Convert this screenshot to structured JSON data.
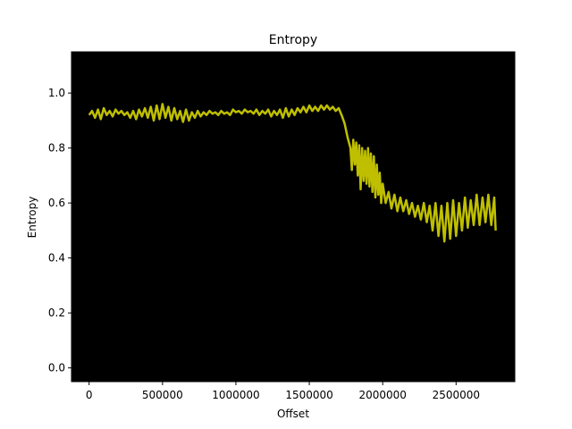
{
  "chart_data": {
    "type": "line",
    "title": "Entropy",
    "xlabel": "Offset",
    "ylabel": "Entropy",
    "xlim": [
      -120000,
      2900000
    ],
    "ylim": [
      -0.05,
      1.15
    ],
    "x_ticks": [
      {
        "value": 0,
        "label": "0"
      },
      {
        "value": 500000,
        "label": "500000"
      },
      {
        "value": 1000000,
        "label": "1000000"
      },
      {
        "value": 1500000,
        "label": "1500000"
      },
      {
        "value": 2000000,
        "label": "2000000"
      },
      {
        "value": 2500000,
        "label": "2500000"
      }
    ],
    "y_ticks": [
      {
        "value": 0.0,
        "label": "0.0"
      },
      {
        "value": 0.2,
        "label": "0.2"
      },
      {
        "value": 0.4,
        "label": "0.4"
      },
      {
        "value": 0.6,
        "label": "0.6"
      },
      {
        "value": 0.8,
        "label": "0.8"
      },
      {
        "value": 1.0,
        "label": "1.0"
      }
    ],
    "grid": false,
    "plot_background": "#000000",
    "series": [
      {
        "color": "#bfbf00",
        "points": [
          [
            0,
            0.92
          ],
          [
            20000,
            0.935
          ],
          [
            40000,
            0.91
          ],
          [
            60000,
            0.94
          ],
          [
            80000,
            0.905
          ],
          [
            100000,
            0.945
          ],
          [
            120000,
            0.92
          ],
          [
            140000,
            0.935
          ],
          [
            160000,
            0.915
          ],
          [
            180000,
            0.94
          ],
          [
            200000,
            0.925
          ],
          [
            220000,
            0.935
          ],
          [
            240000,
            0.92
          ],
          [
            260000,
            0.93
          ],
          [
            280000,
            0.91
          ],
          [
            300000,
            0.935
          ],
          [
            320000,
            0.905
          ],
          [
            340000,
            0.94
          ],
          [
            360000,
            0.915
          ],
          [
            380000,
            0.945
          ],
          [
            400000,
            0.91
          ],
          [
            420000,
            0.95
          ],
          [
            440000,
            0.9
          ],
          [
            460000,
            0.955
          ],
          [
            480000,
            0.905
          ],
          [
            500000,
            0.96
          ],
          [
            520000,
            0.91
          ],
          [
            540000,
            0.95
          ],
          [
            560000,
            0.9
          ],
          [
            580000,
            0.945
          ],
          [
            600000,
            0.905
          ],
          [
            620000,
            0.935
          ],
          [
            640000,
            0.895
          ],
          [
            660000,
            0.94
          ],
          [
            680000,
            0.9
          ],
          [
            700000,
            0.93
          ],
          [
            720000,
            0.91
          ],
          [
            740000,
            0.935
          ],
          [
            760000,
            0.915
          ],
          [
            780000,
            0.93
          ],
          [
            800000,
            0.92
          ],
          [
            820000,
            0.935
          ],
          [
            840000,
            0.925
          ],
          [
            860000,
            0.93
          ],
          [
            880000,
            0.92
          ],
          [
            900000,
            0.935
          ],
          [
            920000,
            0.925
          ],
          [
            940000,
            0.93
          ],
          [
            960000,
            0.92
          ],
          [
            980000,
            0.94
          ],
          [
            1000000,
            0.93
          ],
          [
            1020000,
            0.935
          ],
          [
            1040000,
            0.925
          ],
          [
            1060000,
            0.94
          ],
          [
            1080000,
            0.93
          ],
          [
            1100000,
            0.935
          ],
          [
            1120000,
            0.925
          ],
          [
            1140000,
            0.94
          ],
          [
            1160000,
            0.92
          ],
          [
            1180000,
            0.935
          ],
          [
            1200000,
            0.925
          ],
          [
            1220000,
            0.94
          ],
          [
            1240000,
            0.915
          ],
          [
            1260000,
            0.935
          ],
          [
            1280000,
            0.92
          ],
          [
            1300000,
            0.94
          ],
          [
            1320000,
            0.91
          ],
          [
            1340000,
            0.945
          ],
          [
            1360000,
            0.915
          ],
          [
            1380000,
            0.94
          ],
          [
            1400000,
            0.92
          ],
          [
            1420000,
            0.945
          ],
          [
            1440000,
            0.93
          ],
          [
            1460000,
            0.95
          ],
          [
            1480000,
            0.93
          ],
          [
            1500000,
            0.955
          ],
          [
            1520000,
            0.935
          ],
          [
            1540000,
            0.95
          ],
          [
            1560000,
            0.935
          ],
          [
            1580000,
            0.955
          ],
          [
            1600000,
            0.94
          ],
          [
            1620000,
            0.955
          ],
          [
            1640000,
            0.94
          ],
          [
            1660000,
            0.95
          ],
          [
            1680000,
            0.935
          ],
          [
            1700000,
            0.945
          ],
          [
            1720000,
            0.92
          ],
          [
            1740000,
            0.89
          ],
          [
            1760000,
            0.84
          ],
          [
            1780000,
            0.8
          ],
          [
            1790000,
            0.72
          ],
          [
            1800000,
            0.83
          ],
          [
            1810000,
            0.74
          ],
          [
            1820000,
            0.82
          ],
          [
            1830000,
            0.7
          ],
          [
            1840000,
            0.81
          ],
          [
            1850000,
            0.65
          ],
          [
            1860000,
            0.8
          ],
          [
            1870000,
            0.68
          ],
          [
            1880000,
            0.79
          ],
          [
            1890000,
            0.67
          ],
          [
            1900000,
            0.8
          ],
          [
            1910000,
            0.66
          ],
          [
            1920000,
            0.78
          ],
          [
            1930000,
            0.64
          ],
          [
            1940000,
            0.77
          ],
          [
            1950000,
            0.62
          ],
          [
            1960000,
            0.74
          ],
          [
            1970000,
            0.63
          ],
          [
            1980000,
            0.71
          ],
          [
            1990000,
            0.6
          ],
          [
            2000000,
            0.67
          ],
          [
            2020000,
            0.6
          ],
          [
            2040000,
            0.64
          ],
          [
            2060000,
            0.58
          ],
          [
            2080000,
            0.63
          ],
          [
            2100000,
            0.57
          ],
          [
            2120000,
            0.62
          ],
          [
            2140000,
            0.57
          ],
          [
            2160000,
            0.61
          ],
          [
            2180000,
            0.56
          ],
          [
            2200000,
            0.6
          ],
          [
            2220000,
            0.55
          ],
          [
            2240000,
            0.59
          ],
          [
            2260000,
            0.54
          ],
          [
            2280000,
            0.6
          ],
          [
            2300000,
            0.53
          ],
          [
            2320000,
            0.59
          ],
          [
            2340000,
            0.5
          ],
          [
            2360000,
            0.6
          ],
          [
            2380000,
            0.48
          ],
          [
            2400000,
            0.59
          ],
          [
            2420000,
            0.46
          ],
          [
            2440000,
            0.6
          ],
          [
            2460000,
            0.47
          ],
          [
            2480000,
            0.61
          ],
          [
            2500000,
            0.48
          ],
          [
            2520000,
            0.6
          ],
          [
            2540000,
            0.5
          ],
          [
            2560000,
            0.62
          ],
          [
            2580000,
            0.51
          ],
          [
            2600000,
            0.61
          ],
          [
            2620000,
            0.52
          ],
          [
            2640000,
            0.63
          ],
          [
            2660000,
            0.52
          ],
          [
            2680000,
            0.62
          ],
          [
            2700000,
            0.53
          ],
          [
            2720000,
            0.63
          ],
          [
            2740000,
            0.52
          ],
          [
            2760000,
            0.62
          ],
          [
            2770000,
            0.5
          ]
        ]
      }
    ]
  }
}
